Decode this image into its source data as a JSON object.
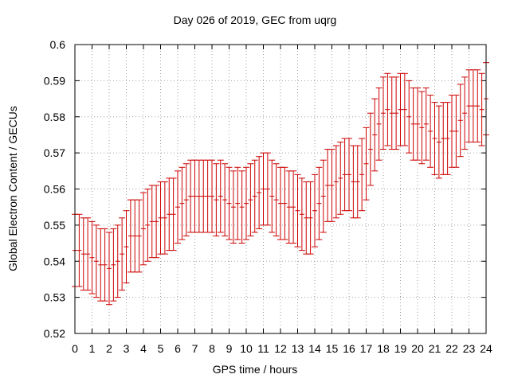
{
  "chart_data": {
    "type": "scatter",
    "title": "Day 026 of 2019, GEC from uqrg",
    "xlabel": "GPS time / hours",
    "ylabel": "Global Electron Content / GECUs",
    "xlim": [
      0,
      24
    ],
    "ylim": [
      0.52,
      0.6
    ],
    "xticks": [
      "0",
      "1",
      "2",
      "3",
      "4",
      "5",
      "6",
      "7",
      "8",
      "9",
      "10",
      "11",
      "12",
      "13",
      "14",
      "15",
      "16",
      "17",
      "18",
      "19",
      "20",
      "21",
      "22",
      "23",
      "24"
    ],
    "yticks": [
      "0.52",
      "0.53",
      "0.54",
      "0.55",
      "0.56",
      "0.57",
      "0.58",
      "0.59",
      "0.6"
    ],
    "grid": true,
    "error_bar_halfwidth": 0.01,
    "series": [
      {
        "color": "#cc0000",
        "x": [
          0,
          0.25,
          0.5,
          0.75,
          1,
          1.25,
          1.5,
          1.75,
          2,
          2.25,
          2.5,
          2.75,
          3,
          3.25,
          3.5,
          3.75,
          4,
          4.25,
          4.5,
          4.75,
          5,
          5.25,
          5.5,
          5.75,
          6,
          6.25,
          6.5,
          6.75,
          7,
          7.25,
          7.5,
          7.75,
          8,
          8.25,
          8.5,
          8.75,
          9,
          9.25,
          9.5,
          9.75,
          10,
          10.25,
          10.5,
          10.75,
          11,
          11.25,
          11.5,
          11.75,
          12,
          12.25,
          12.5,
          12.75,
          13,
          13.25,
          13.5,
          13.75,
          14,
          14.25,
          14.5,
          14.75,
          15,
          15.25,
          15.5,
          15.75,
          16,
          16.25,
          16.5,
          16.75,
          17,
          17.25,
          17.5,
          17.75,
          18,
          18.25,
          18.5,
          18.75,
          19,
          19.25,
          19.5,
          19.75,
          20,
          20.25,
          20.5,
          20.75,
          21,
          21.25,
          21.5,
          21.75,
          22,
          22.25,
          22.5,
          22.75,
          23,
          23.25,
          23.5,
          23.75,
          24
        ],
        "y": [
          0.543,
          0.543,
          0.542,
          0.542,
          0.541,
          0.54,
          0.539,
          0.539,
          0.538,
          0.539,
          0.54,
          0.542,
          0.544,
          0.547,
          0.547,
          0.547,
          0.549,
          0.55,
          0.551,
          0.551,
          0.552,
          0.552,
          0.553,
          0.553,
          0.555,
          0.556,
          0.557,
          0.558,
          0.558,
          0.558,
          0.558,
          0.558,
          0.558,
          0.557,
          0.558,
          0.557,
          0.556,
          0.555,
          0.556,
          0.555,
          0.556,
          0.557,
          0.558,
          0.559,
          0.56,
          0.56,
          0.558,
          0.557,
          0.556,
          0.556,
          0.555,
          0.555,
          0.554,
          0.553,
          0.552,
          0.552,
          0.554,
          0.556,
          0.558,
          0.561,
          0.561,
          0.562,
          0.563,
          0.564,
          0.564,
          0.562,
          0.562,
          0.564,
          0.567,
          0.571,
          0.575,
          0.578,
          0.581,
          0.582,
          0.581,
          0.581,
          0.582,
          0.582,
          0.58,
          0.578,
          0.578,
          0.577,
          0.578,
          0.576,
          0.574,
          0.573,
          0.574,
          0.574,
          0.576,
          0.576,
          0.579,
          0.581,
          0.583,
          0.583,
          0.583,
          0.582,
          0.585
        ]
      }
    ]
  }
}
